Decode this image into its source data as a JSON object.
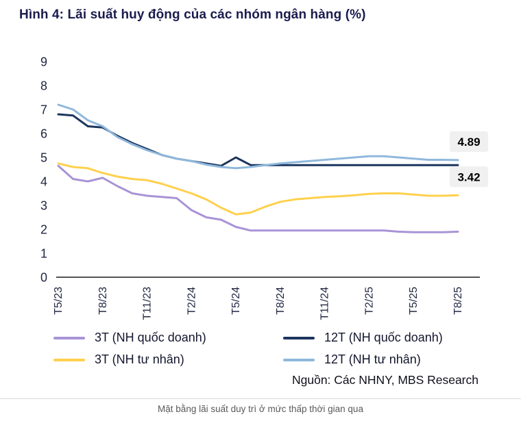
{
  "title": "Hình 4: Lãi suất huy động của các nhóm ngân hàng (%)",
  "source": "Nguồn: Các NHNY, MBS Research",
  "footer_caption": "Mặt bằng lãi suất duy trì ở mức thấp thời gian qua",
  "colors": {
    "title": "#1a1c4e",
    "axis_text": "#1f2540",
    "axis_line": "#1a1a1a",
    "label_box_bg": "#f0f0f0",
    "label_text": "#000000",
    "purple": "#a893d6",
    "navy": "#1c355e",
    "yellow": "#ffd04d",
    "light_blue": "#8fb8dc"
  },
  "chart_data": {
    "type": "line",
    "title": "Hình 4: Lãi suất huy động của các nhóm ngân hàng (%)",
    "x_ticks": [
      "T5/23",
      "T8/23",
      "T11/23",
      "T2/24",
      "T5/24",
      "T8/24",
      "T11/24",
      "T2/25",
      "T5/25",
      "T8/25"
    ],
    "tick_every": 3,
    "ylim": [
      0,
      9
    ],
    "yticks": [
      0,
      1,
      2,
      3,
      4,
      5,
      6,
      7,
      8,
      9
    ],
    "grid": false,
    "legend_position": "bottom",
    "series": [
      {
        "name": "3T (NH quốc doanh)",
        "color": "#a893d6",
        "values": [
          4.65,
          4.1,
          4.0,
          4.15,
          3.8,
          3.5,
          3.4,
          3.35,
          3.3,
          2.8,
          2.5,
          2.4,
          2.1,
          1.95,
          1.95,
          1.95,
          1.95,
          1.95,
          1.95,
          1.95,
          1.95,
          1.95,
          1.95,
          1.9,
          1.88,
          1.88,
          1.88,
          1.9
        ]
      },
      {
        "name": "12T (NH quốc doanh)",
        "color": "#1c355e",
        "values": [
          6.8,
          6.75,
          6.3,
          6.25,
          5.9,
          5.6,
          5.35,
          5.1,
          4.95,
          4.85,
          4.75,
          4.65,
          5.0,
          4.68,
          4.68,
          4.68,
          4.68,
          4.68,
          4.68,
          4.68,
          4.68,
          4.68,
          4.68,
          4.68,
          4.68,
          4.68,
          4.68,
          4.68
        ]
      },
      {
        "name": "3T (NH tư nhân)",
        "color": "#ffd04d",
        "values": [
          4.75,
          4.6,
          4.55,
          4.35,
          4.2,
          4.1,
          4.05,
          3.9,
          3.7,
          3.5,
          3.25,
          2.9,
          2.62,
          2.7,
          2.95,
          3.15,
          3.25,
          3.3,
          3.35,
          3.38,
          3.42,
          3.48,
          3.5,
          3.5,
          3.45,
          3.4,
          3.4,
          3.42
        ]
      },
      {
        "name": "12T (NH tư nhân)",
        "color": "#8fb8dc",
        "values": [
          7.2,
          7.0,
          6.55,
          6.3,
          5.85,
          5.55,
          5.3,
          5.1,
          4.95,
          4.85,
          4.7,
          4.6,
          4.55,
          4.6,
          4.68,
          4.75,
          4.8,
          4.85,
          4.9,
          4.95,
          5.0,
          5.05,
          5.05,
          5.0,
          4.95,
          4.9,
          4.9,
          4.89
        ]
      }
    ],
    "end_labels": [
      {
        "series": "12T (NH tư nhân)",
        "text": "4.89"
      },
      {
        "series": "3T (NH tư nhân)",
        "text": "3.42"
      }
    ]
  }
}
